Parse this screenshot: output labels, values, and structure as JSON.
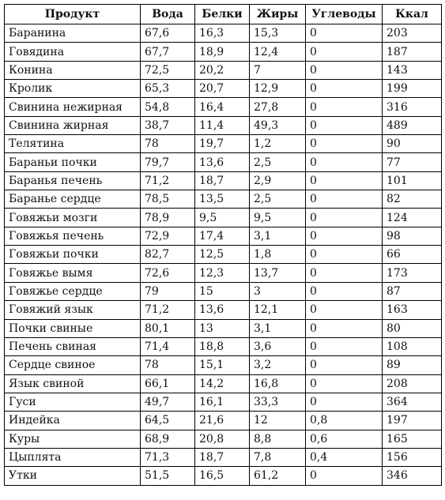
{
  "table": {
    "headers": [
      "Продукт",
      "Вода",
      "Белки",
      "Жиры",
      "Углеводы",
      "Ккал"
    ],
    "rows": [
      [
        "Баранина",
        "67,6",
        "16,3",
        "15,3",
        "0",
        "203"
      ],
      [
        "Говядина",
        "67,7",
        "18,9",
        "12,4",
        "0",
        "187"
      ],
      [
        "Конина",
        "72,5",
        "20,2",
        "7",
        "0",
        "143"
      ],
      [
        "Кролик",
        "65,3",
        "20,7",
        "12,9",
        "0",
        "199"
      ],
      [
        "Свинина нежирная",
        "54,8",
        "16,4",
        "27,8",
        "0",
        "316"
      ],
      [
        "Свинина жирная",
        "38,7",
        "11,4",
        "49,3",
        "0",
        "489"
      ],
      [
        "Телятина",
        "78",
        "19,7",
        "1,2",
        "0",
        "90"
      ],
      [
        "Бараньи почки",
        "79,7",
        "13,6",
        "2,5",
        "0",
        "77"
      ],
      [
        "Баранья печень",
        "71,2",
        "18,7",
        "2,9",
        "0",
        "101"
      ],
      [
        "Баранье сердце",
        "78,5",
        "13,5",
        "2,5",
        "0",
        "82"
      ],
      [
        "Говяжьи мозги",
        "78,9",
        "9,5",
        "9,5",
        "0",
        "124"
      ],
      [
        "Говяжья печень",
        "72,9",
        "17,4",
        "3,1",
        "0",
        "98"
      ],
      [
        "Говяжьи почки",
        "82,7",
        "12,5",
        "1,8",
        "0",
        "66"
      ],
      [
        "Говяжье вымя",
        "72,6",
        "12,3",
        "13,7",
        "0",
        "173"
      ],
      [
        "Говяжье сердце",
        "79",
        "15",
        "3",
        "0",
        "87"
      ],
      [
        "Говяжий язык",
        "71,2",
        "13,6",
        "12,1",
        "0",
        "163"
      ],
      [
        "Почки свиные",
        "80,1",
        "13",
        "3,1",
        "0",
        "80"
      ],
      [
        "Печень свиная",
        "71,4",
        "18,8",
        "3,6",
        "0",
        "108"
      ],
      [
        "Сердце свиное",
        "78",
        "15,1",
        "3,2",
        "0",
        "89"
      ],
      [
        "Язык свиной",
        "66,1",
        "14,2",
        "16,8",
        "0",
        "208"
      ],
      [
        "Гуси",
        "49,7",
        "16,1",
        "33,3",
        "0",
        "364"
      ],
      [
        "Индейка",
        "64,5",
        "21,6",
        "12",
        "0,8",
        "197"
      ],
      [
        "Куры",
        "68,9",
        "20,8",
        "8,8",
        "0,6",
        "165"
      ],
      [
        "Цыплята",
        "71,3",
        "18,7",
        "7,8",
        "0,4",
        "156"
      ],
      [
        "Утки",
        "51,5",
        "16,5",
        "61,2",
        "0",
        "346"
      ]
    ]
  }
}
